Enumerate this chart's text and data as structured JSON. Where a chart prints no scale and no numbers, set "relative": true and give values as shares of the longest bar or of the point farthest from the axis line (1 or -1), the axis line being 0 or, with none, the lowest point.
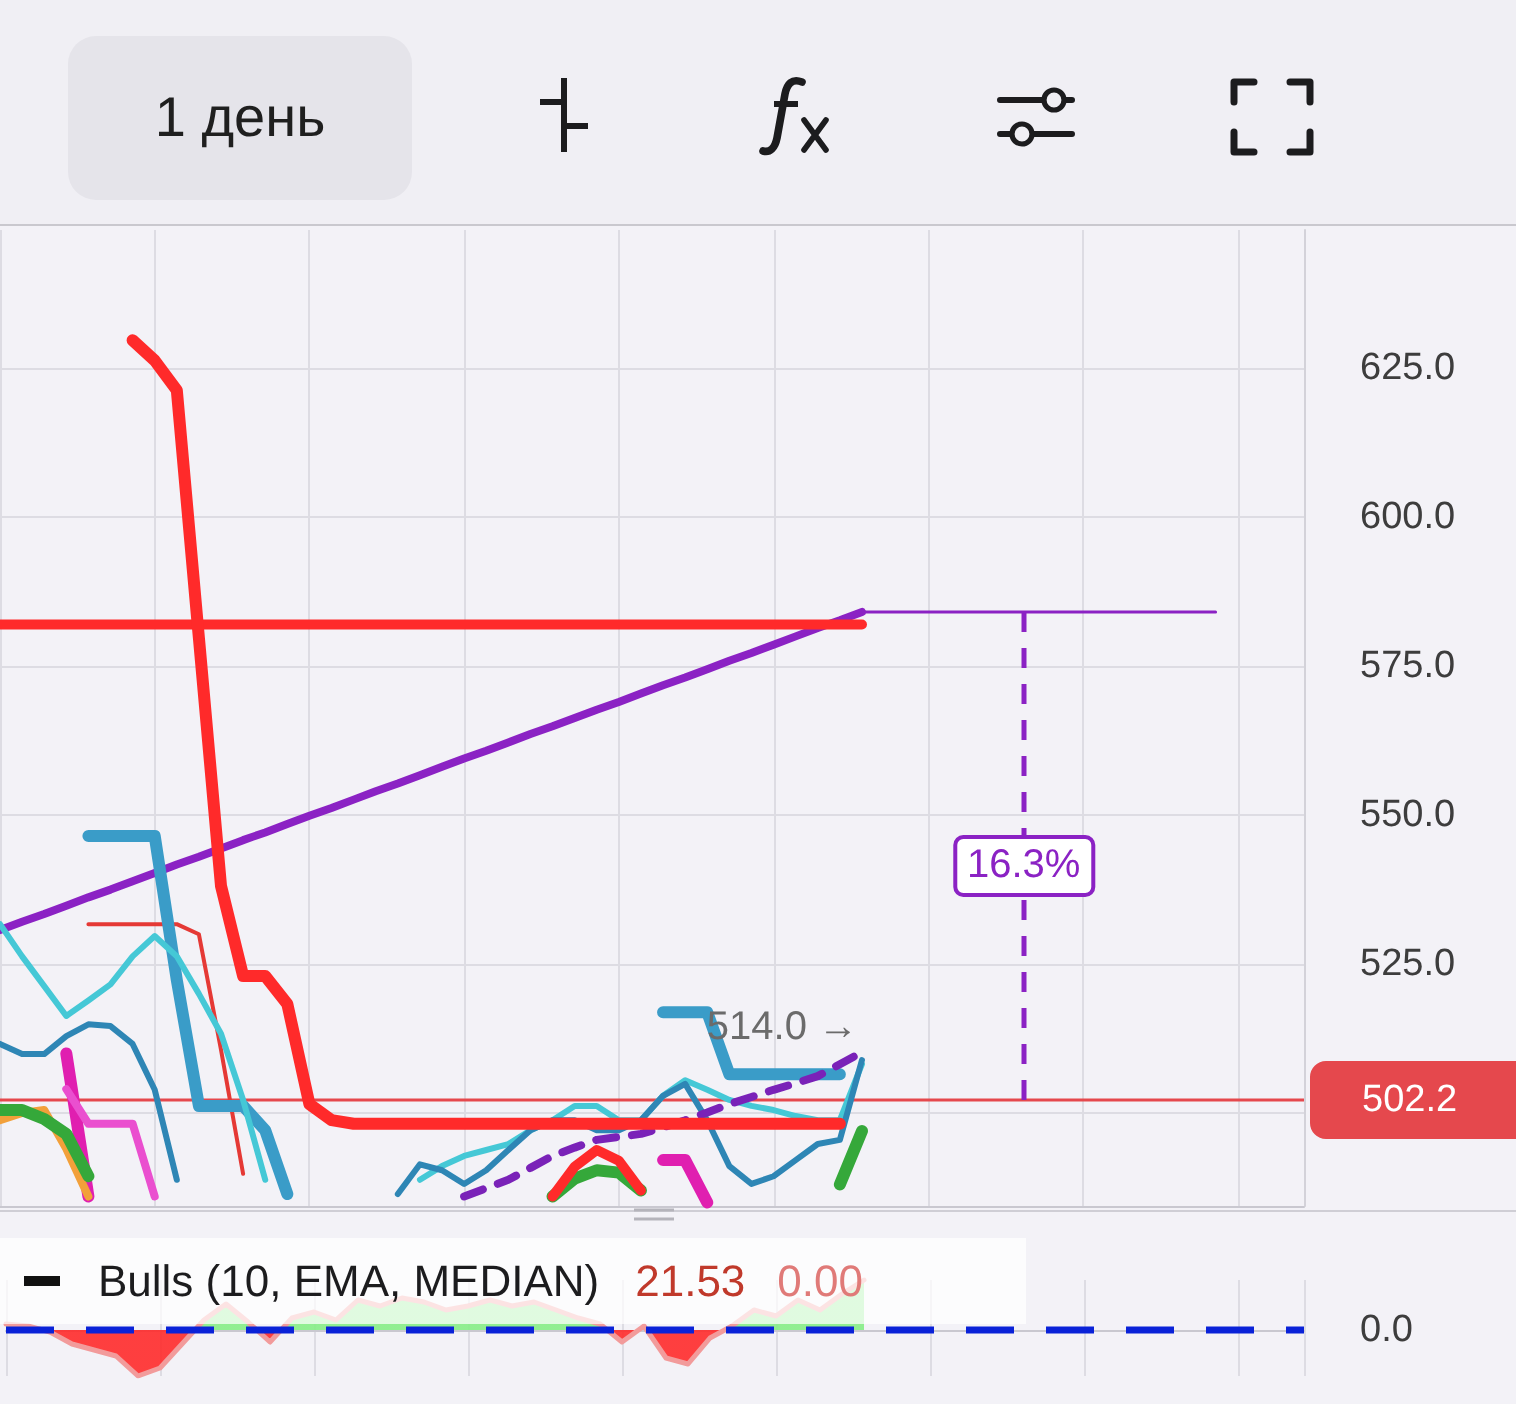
{
  "chart_data": [
    {
      "type": "line",
      "categories": [
        null,
        null,
        null,
        null,
        null,
        null,
        null,
        null,
        null,
        null,
        null,
        null,
        null,
        null,
        null,
        null,
        null,
        null,
        null,
        null,
        null,
        null,
        null,
        null,
        null,
        null,
        null,
        null,
        null,
        null,
        null,
        null,
        null,
        null,
        null,
        null,
        null,
        null,
        null,
        null,
        null,
        null,
        null,
        null,
        null,
        null,
        null,
        null,
        null,
        null,
        null,
        null,
        null,
        null,
        null,
        null,
        null,
        null,
        null,
        null
      ],
      "series": [
        {
          "color": "#8b22c4",
          "values": [
            530.7,
            532.1,
            533.4,
            534.8,
            536.2,
            537.5,
            538.9,
            540.3,
            541.7,
            543.0,
            544.4,
            545.8,
            547.1,
            548.5,
            549.9,
            551.2,
            552.6,
            554.0,
            555.3,
            556.7,
            558.1,
            559.5,
            560.8,
            562.2,
            563.6,
            564.9,
            566.3,
            567.7,
            569.0,
            570.4,
            571.8,
            573.1,
            574.5,
            575.9,
            577.2,
            578.6,
            580.0,
            581.4,
            582.7,
            584.1,
            null,
            null,
            null,
            null,
            null,
            null,
            null,
            null,
            null,
            null,
            null,
            null,
            null,
            null,
            null,
            null,
            null,
            null,
            null,
            null
          ]
        },
        {
          "color": "#8b22c4",
          "values": [
            null,
            null,
            null,
            null,
            null,
            null,
            null,
            null,
            null,
            null,
            null,
            null,
            null,
            null,
            null,
            null,
            null,
            null,
            null,
            null,
            null,
            null,
            null,
            null,
            null,
            null,
            null,
            null,
            null,
            null,
            null,
            null,
            null,
            null,
            null,
            null,
            null,
            null,
            null,
            584.1,
            584.1,
            584.1,
            584.1,
            584.1,
            584.1,
            584.1,
            584.1,
            584.1,
            584.1,
            584.1,
            584.1,
            584.1,
            584.1,
            584.1,
            584.1,
            584.1,
            null,
            null,
            null,
            null
          ]
        },
        {
          "color": "#ff2a2a",
          "values": [
            582,
            582,
            582,
            582,
            582,
            582,
            582,
            582,
            582,
            582,
            582,
            582,
            582,
            582,
            582,
            582,
            582,
            582,
            582,
            582,
            582,
            582,
            582,
            582,
            582,
            582,
            582,
            582,
            582,
            582,
            582,
            582,
            582,
            582,
            582,
            582,
            582,
            582,
            582,
            582,
            null,
            null,
            null,
            null,
            null,
            null,
            null,
            null,
            null,
            null,
            null,
            null,
            null,
            null,
            null,
            null,
            null,
            null,
            null,
            null
          ]
        },
        {
          "color": "#e53935",
          "values": [
            null,
            null,
            null,
            null,
            531.7,
            531.7,
            531.7,
            531.7,
            531.7,
            530,
            510.6,
            489.8,
            null,
            null,
            null,
            null,
            null,
            null,
            null,
            null,
            null,
            null,
            null,
            null,
            null,
            null,
            null,
            null,
            null,
            null,
            null,
            null,
            null,
            null,
            null,
            null,
            null,
            null,
            null,
            null,
            null,
            null,
            null,
            null,
            null,
            null,
            null,
            null,
            null,
            null,
            null,
            null,
            null,
            null,
            null,
            null,
            null,
            null,
            null,
            null
          ]
        },
        {
          "color": "#3a9cc8",
          "values": [
            null,
            null,
            null,
            null,
            546.5,
            546.5,
            546.5,
            546.5,
            522.3,
            501.2,
            501.2,
            501.2,
            497.1,
            486.4,
            null,
            null,
            null,
            null,
            null,
            null,
            null,
            null,
            null,
            null,
            null,
            null,
            null,
            null,
            null,
            null,
            516.9,
            516.9,
            516.9,
            506.5,
            506.5,
            506.5,
            506.5,
            506.5,
            506.5,
            null,
            null,
            null,
            null,
            null,
            null,
            null,
            null,
            null,
            null,
            null,
            null,
            null,
            null,
            null,
            null,
            null,
            null,
            null,
            null,
            null
          ]
        },
        {
          "color": "#45c8d6",
          "values": [
            531.7,
            526.3,
            521.3,
            516.3,
            518.9,
            521.6,
            526.3,
            529.7,
            526.3,
            520,
            513.3,
            502.2,
            488.8,
            null,
            null,
            null,
            null,
            null,
            null,
            488.8,
            491.1,
            492.8,
            493.8,
            494.8,
            497.1,
            498.8,
            501.2,
            501.2,
            498.8,
            498.8,
            502.9,
            505.5,
            503.9,
            502.2,
            501.2,
            500.5,
            499.5,
            498.8,
            498.8,
            508.2,
            null,
            null,
            null,
            null,
            null,
            null,
            null,
            null,
            null,
            null,
            null,
            null,
            null,
            null,
            null,
            null,
            null,
            null,
            null,
            null
          ]
        },
        {
          "color": "#2e86b5",
          "values": [
            511.6,
            509.9,
            509.9,
            512.9,
            514.9,
            514.6,
            511.6,
            503.9,
            488.8,
            null,
            null,
            null,
            null,
            null,
            null,
            null,
            null,
            null,
            486.4,
            491.4,
            490.4,
            488.1,
            490.4,
            493.8,
            497.1,
            498.8,
            498.8,
            497.1,
            497.1,
            498.8,
            502.9,
            504.9,
            498.8,
            491.1,
            488.1,
            489.4,
            492.1,
            494.8,
            495.5,
            508.9,
            null,
            null,
            null,
            null,
            null,
            null,
            null,
            null,
            null,
            null,
            null,
            null,
            null,
            null,
            null,
            null,
            null,
            null,
            null,
            null
          ]
        },
        {
          "color": "#e01fb0",
          "values": [
            null,
            null,
            null,
            510,
            486,
            null,
            null,
            null,
            null,
            null,
            null,
            null,
            null,
            null,
            null,
            null,
            null,
            null,
            null,
            null,
            null,
            null,
            null,
            null,
            null,
            null,
            null,
            null,
            null,
            null,
            492.1,
            492.1,
            485,
            null,
            null,
            null,
            null,
            null,
            null,
            null,
            null,
            null,
            null,
            null,
            null,
            null,
            null,
            null,
            null,
            null,
            null,
            null,
            null,
            null,
            null,
            null,
            null,
            null,
            null,
            null
          ]
        },
        {
          "color": "#ea4fcf",
          "values": [
            null,
            null,
            null,
            504,
            498.2,
            498.2,
            498.2,
            486,
            null,
            null,
            null,
            null,
            null,
            null,
            null,
            null,
            null,
            null,
            null,
            null,
            null,
            null,
            null,
            null,
            null,
            null,
            null,
            null,
            null,
            null,
            null,
            null,
            null,
            null,
            null,
            null,
            null,
            null,
            null,
            null,
            null,
            null,
            null,
            null,
            null,
            null,
            null,
            null,
            null,
            null,
            null,
            null,
            null,
            null,
            null,
            null,
            null,
            null,
            null,
            null
          ]
        },
        {
          "color": "#f2a03a",
          "values": [
            498.8,
            500,
            500.5,
            494,
            486,
            null,
            null,
            null,
            null,
            null,
            null,
            null,
            null,
            null,
            null,
            null,
            null,
            null,
            null,
            null,
            null,
            null,
            null,
            null,
            null,
            null,
            null,
            null,
            null,
            null,
            null,
            null,
            null,
            null,
            null,
            null,
            null,
            null,
            null,
            null,
            null,
            null,
            null,
            null,
            null,
            null,
            null,
            null,
            null,
            null,
            null,
            null,
            null,
            null,
            null,
            null,
            null,
            null,
            null,
            null
          ]
        },
        {
          "color": "#35a83a",
          "values": [
            500.5,
            500.5,
            499,
            496.5,
            489.4,
            null,
            null,
            null,
            null,
            null,
            null,
            null,
            null,
            null,
            null,
            null,
            null,
            null,
            null,
            null,
            null,
            null,
            null,
            null,
            null,
            486,
            489,
            490.4,
            490,
            487,
            null,
            null,
            null,
            null,
            null,
            null,
            null,
            null,
            488,
            497,
            null,
            null,
            null,
            null,
            null,
            null,
            null,
            null,
            null,
            null,
            null,
            null,
            null,
            null,
            null,
            null,
            null,
            null,
            null,
            null
          ]
        },
        {
          "color": "#ff2a2a",
          "values": [
            null,
            null,
            null,
            null,
            null,
            null,
            null,
            null,
            null,
            null,
            null,
            null,
            null,
            null,
            null,
            null,
            null,
            null,
            null,
            null,
            null,
            null,
            null,
            null,
            null,
            486,
            491,
            493.8,
            492,
            487,
            null,
            null,
            null,
            null,
            null,
            null,
            null,
            null,
            null,
            null,
            null,
            null,
            null,
            null,
            null,
            null,
            null,
            null,
            null,
            null,
            null,
            null,
            null,
            null,
            null,
            null,
            null,
            null,
            null,
            null
          ]
        },
        {
          "color": "#7a22b8",
          "line_style": "dashed",
          "values": [
            null,
            null,
            null,
            null,
            null,
            null,
            null,
            null,
            null,
            null,
            null,
            null,
            null,
            null,
            null,
            null,
            null,
            null,
            null,
            null,
            null,
            486,
            487.4,
            488.8,
            490.8,
            492.8,
            494.2,
            495.5,
            496,
            496.5,
            497.6,
            498.8,
            500.1,
            501.5,
            502.7,
            503.9,
            505,
            506.2,
            508.2,
            510.2,
            null,
            null,
            null,
            null,
            null,
            null,
            null,
            null,
            null,
            null,
            null,
            null,
            null,
            null,
            null,
            null,
            null,
            null,
            null,
            null
          ]
        },
        {
          "color": "#ff2a2a",
          "values": [
            null,
            null,
            null,
            null,
            null,
            null,
            629.7,
            626.3,
            621.3,
            579.7,
            538.1,
            523,
            523,
            518.3,
            501.5,
            498.8,
            498.2,
            498.2,
            498.2,
            498.2,
            498.2,
            498.2,
            498.2,
            498.2,
            498.2,
            498.2,
            498.2,
            498.2,
            498.2,
            498.2,
            498.2,
            498.2,
            498.2,
            498.2,
            498.2,
            498.2,
            498.2,
            498.2,
            498.2,
            null,
            null,
            null,
            null,
            null,
            null,
            null,
            null,
            null,
            null,
            null,
            null,
            null,
            null,
            null,
            null,
            null,
            null,
            null,
            null,
            null
          ]
        }
      ],
      "ylim": [
        484.4,
        648.2
      ],
      "yticks": [
        {
          "value": 500,
          "label": null
        },
        {
          "value": 525,
          "label": "525.0"
        },
        {
          "value": 550,
          "label": "550.0"
        },
        {
          "value": 575,
          "label": "575.0"
        },
        {
          "value": 600,
          "label": "600.0"
        },
        {
          "value": 625,
          "label": "625.0"
        }
      ],
      "grid": true,
      "marker": "none",
      "tick_labels": "y",
      "ref_lines": [
        {
          "axis": "y",
          "value": 502.2,
          "label": "502.2",
          "color": "#e5484d"
        }
      ],
      "annotations": [
        "1 день",
        "514.0 →",
        "16.3%"
      ]
    },
    {
      "type": "area",
      "title": "Bulls (10, EMA, MEDIAN)",
      "relative": true,
      "categories": [
        null,
        null,
        null,
        null,
        null,
        null,
        null,
        null,
        null,
        null,
        null,
        null,
        null,
        null,
        null,
        null,
        null,
        null,
        null,
        null,
        null,
        null,
        null,
        null,
        null,
        null,
        null,
        null,
        null,
        null,
        null,
        null,
        null,
        null,
        null,
        null,
        null,
        null,
        null,
        null,
        null,
        null,
        null,
        null,
        null,
        null,
        null,
        null,
        null,
        null,
        null,
        null,
        null,
        null,
        null,
        null,
        null,
        null,
        null,
        null
      ],
      "series": [
        {
          "color": "#f29b9b",
          "values": [
            0.12,
            0.08,
            -0.04,
            -0.28,
            -0.4,
            -0.52,
            -0.92,
            -0.76,
            -0.28,
            0.2,
            0.52,
            0.16,
            -0.24,
            0.24,
            0.36,
            0.2,
            0.6,
            0.48,
            0.64,
            0.56,
            0.4,
            0.48,
            0.6,
            0.48,
            0.56,
            0.4,
            0.24,
            0.12,
            -0.24,
            0.08,
            -0.56,
            -0.68,
            -0.16,
            0.08,
            0.4,
            0.28,
            0.6,
            0.4,
            0.72,
            1,
            null,
            null,
            null,
            null,
            null,
            null,
            null,
            null,
            null,
            null,
            null,
            null,
            null,
            null,
            null,
            null,
            null,
            null,
            null,
            null
          ],
          "colors": [
            "#86ee86",
            "#86ee86",
            "#ff2b2b",
            "#ff2b2b",
            "#ff2b2b",
            "#ff2b2b",
            "#ff2b2b",
            "#ff2b2b",
            "#ff2b2b",
            "#86ee86",
            "#86ee86",
            "#86ee86",
            "#ff2b2b",
            "#86ee86",
            "#86ee86",
            "#86ee86",
            "#86ee86",
            "#86ee86",
            "#86ee86",
            "#86ee86",
            "#86ee86",
            "#86ee86",
            "#86ee86",
            "#86ee86",
            "#86ee86",
            "#86ee86",
            "#86ee86",
            "#86ee86",
            "#ff2b2b",
            "#86ee86",
            "#ff2b2b",
            "#ff2b2b",
            "#ff2b2b",
            "#86ee86",
            "#86ee86",
            "#86ee86",
            "#86ee86",
            "#86ee86",
            "#86ee86",
            "#86ee86",
            null,
            null,
            null,
            null,
            null,
            null,
            null,
            null,
            null,
            null,
            null,
            null,
            null,
            null,
            null,
            null,
            null,
            null,
            null,
            null
          ]
        }
      ],
      "grid": "x",
      "marker": "none",
      "ref_lines": [
        {
          "axis": "y",
          "value": 0,
          "label": "0.0",
          "color": "#0a22d8",
          "line_style": "dashed"
        }
      ],
      "annotations": [
        "21.53",
        "0.00"
      ]
    }
  ]
}
